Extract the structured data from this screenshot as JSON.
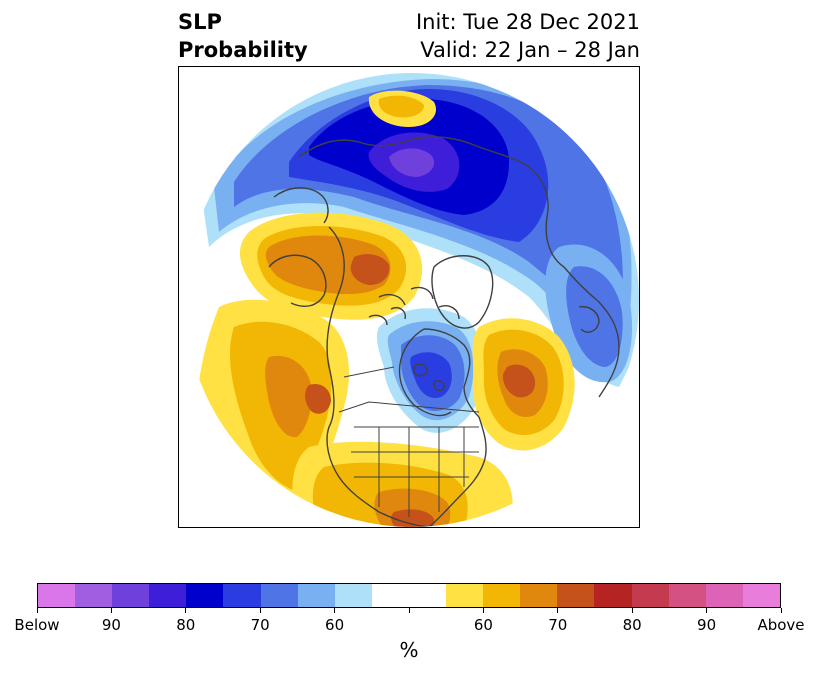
{
  "title": {
    "left_line1": "SLP",
    "left_line2": "Probability",
    "right_line1": "Init: Tue 28 Dec 2021",
    "right_line2": "Valid: 22 Jan – 28 Jan"
  },
  "map": {
    "projection": "north polar stereographic",
    "features": [
      {
        "name": "below-normal-arctic-siberia",
        "category": "below",
        "peak": "80-90"
      },
      {
        "name": "below-normal-hudson-bay",
        "category": "below",
        "peak": "70-80"
      },
      {
        "name": "below-normal-europe",
        "category": "below",
        "peak": "60-70"
      },
      {
        "name": "above-normal-alaska",
        "category": "above",
        "peak": "70-75"
      },
      {
        "name": "above-normal-north-pacific",
        "category": "above",
        "peak": "70-75"
      },
      {
        "name": "above-normal-north-atlantic",
        "category": "above",
        "peak": "70-75"
      },
      {
        "name": "above-normal-gulf-mexico",
        "category": "above",
        "peak": "70-75"
      }
    ]
  },
  "colorbar": {
    "colors": [
      "#d977e8",
      "#a05ee0",
      "#7040dc",
      "#3e1ed8",
      "#0000cd",
      "#2a3de0",
      "#4f74e6",
      "#79b0f2",
      "#aee0fa",
      "#ffffff",
      "#ffffff",
      "#ffe144",
      "#f2b705",
      "#e0870d",
      "#c4521a",
      "#b52323",
      "#c43a4e",
      "#d45283",
      "#dc63b5",
      "#e87ddc"
    ],
    "labels": [
      "Below",
      "90",
      "80",
      "70",
      "60",
      "60",
      "70",
      "80",
      "90",
      "Above"
    ],
    "unit": "%"
  }
}
